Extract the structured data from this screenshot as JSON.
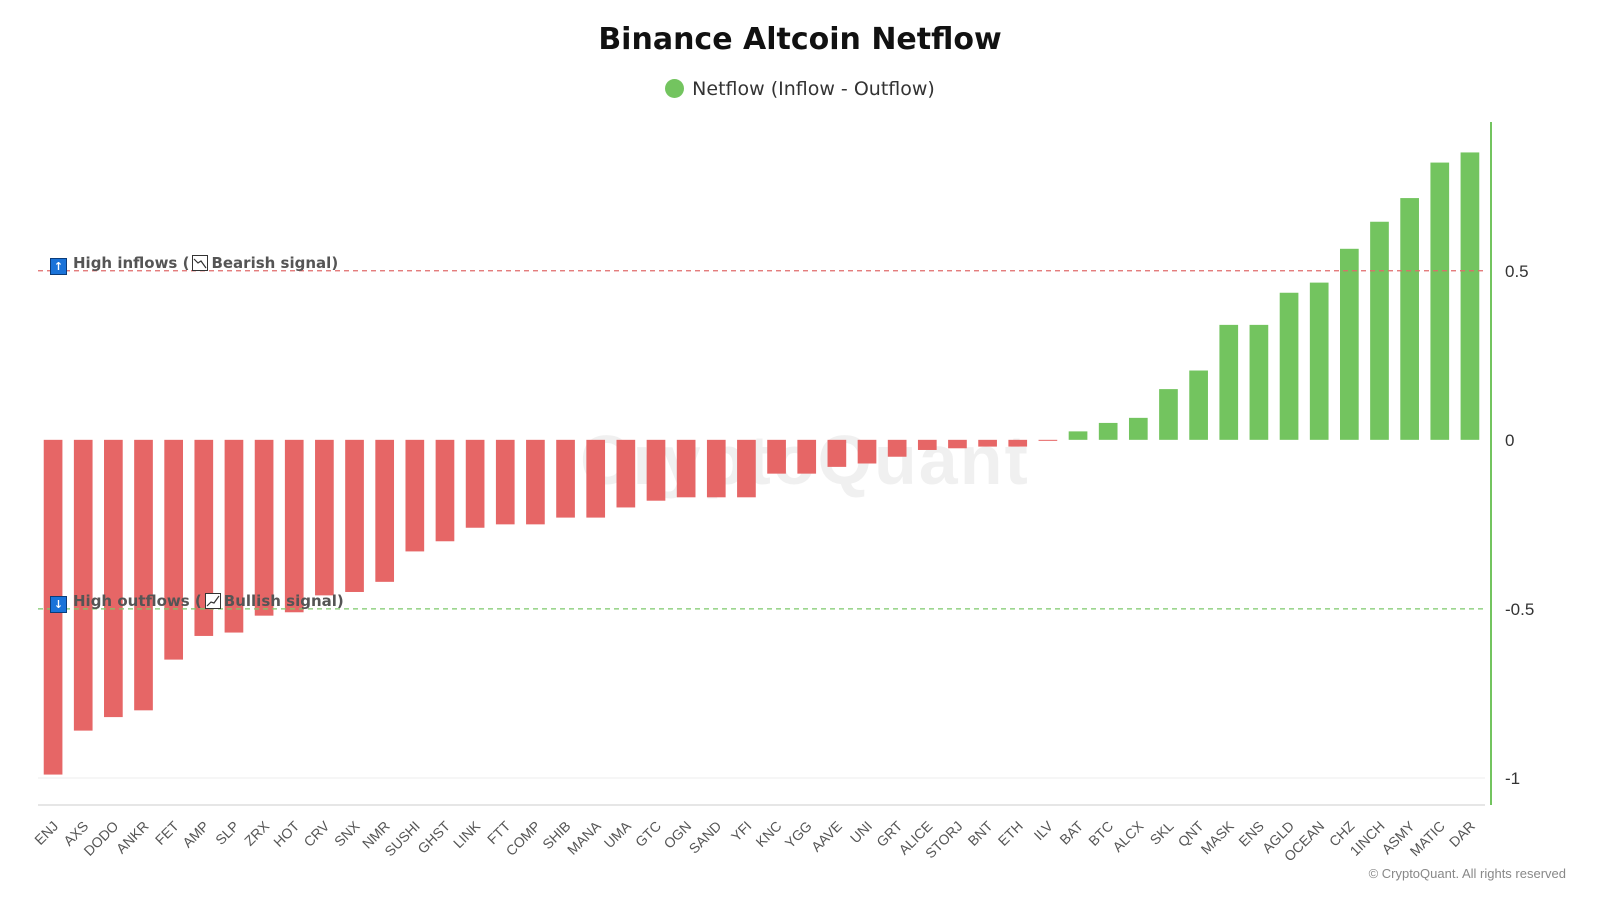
{
  "chart_data": {
    "type": "bar",
    "title": "Binance Altcoin Netflow",
    "legend": {
      "label": "Netflow (Inflow - Outflow)",
      "color": "#73c45f",
      "placement": "top-center"
    },
    "categories": [
      "ENJ",
      "AXS",
      "DODO",
      "ANKR",
      "FET",
      "AMP",
      "SLP",
      "ZRX",
      "HOT",
      "CRV",
      "SNX",
      "NMR",
      "SUSHI",
      "GHST",
      "LINK",
      "FTT",
      "COMP",
      "SHIB",
      "MANA",
      "UMA",
      "GTC",
      "OGN",
      "SAND",
      "YFI",
      "KNC",
      "YGG",
      "AAVE",
      "UNI",
      "GRT",
      "ALICE",
      "STORJ",
      "BNT",
      "ETH",
      "ILV",
      "BAT",
      "BTC",
      "ALCX",
      "SKL",
      "QNT",
      "MASK",
      "ENS",
      "AGLD",
      "OCEAN",
      "CHZ",
      "1INCH",
      "ASMY",
      "MATIC",
      "DAR"
    ],
    "values": [
      -0.99,
      -0.86,
      -0.82,
      -0.8,
      -0.65,
      -0.58,
      -0.57,
      -0.52,
      -0.51,
      -0.46,
      -0.45,
      -0.42,
      -0.33,
      -0.3,
      -0.26,
      -0.25,
      -0.25,
      -0.23,
      -0.23,
      -0.2,
      -0.18,
      -0.17,
      -0.17,
      -0.17,
      -0.1,
      -0.1,
      -0.08,
      -0.07,
      -0.05,
      -0.03,
      -0.025,
      -0.02,
      -0.02,
      -0.003,
      0.025,
      0.05,
      0.065,
      0.15,
      0.205,
      0.34,
      0.34,
      0.435,
      0.465,
      0.565,
      0.645,
      0.715,
      0.82,
      0.85
    ],
    "positive_color": "#73c45f",
    "negative_color": "#e66666",
    "ylim": [
      -1.08,
      0.94
    ],
    "yticks": [
      0.5,
      0,
      -0.5,
      -1
    ],
    "ytick_labels": [
      "0.5",
      "0",
      "-0.5",
      "-1"
    ],
    "y_axis_position": "right",
    "thresholds": [
      {
        "value": 0.5,
        "color": "#e06b6b",
        "label": "High inflows",
        "signal": "Bearish signal",
        "arrow": "↑"
      },
      {
        "value": -0.5,
        "color": "#7cc86a",
        "label": "High outflows",
        "signal": "Bullish signal",
        "arrow": "↓"
      }
    ]
  },
  "watermark": "CryptoQuant",
  "copyright": "© CryptoQuant. All rights reserved"
}
